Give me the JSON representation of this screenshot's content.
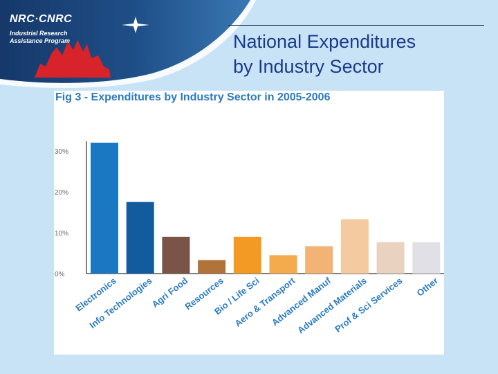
{
  "header": {
    "org_name": "NRC·CNRC",
    "program_line1": "Industrial Research",
    "program_line2": "Assistance Program"
  },
  "slide": {
    "title_line1": "National Expenditures",
    "title_line2": "by Industry Sector"
  },
  "chart_data": {
    "type": "bar",
    "title": "Fig 3 -  Expenditures by Industry Sector in 2005-2006",
    "xlabel": "",
    "ylabel": "",
    "ylim": [
      0,
      32
    ],
    "yticks": [
      0,
      10,
      20,
      30
    ],
    "ytick_labels": [
      "0%",
      "10%",
      "20%",
      "30%"
    ],
    "categories": [
      "Electronics",
      "Info Technologies",
      "Agri Food",
      "Resources",
      "Bio / Life Sci",
      "Aero & Transport",
      "Advanced Manuf",
      "Advanced Materials",
      "Prof & Sci Services",
      "Other"
    ],
    "values": [
      32,
      17.5,
      9,
      3.3,
      9,
      4.5,
      6.7,
      13.3,
      7.7,
      7.7
    ],
    "colors": [
      "#1a78c2",
      "#125c9e",
      "#7a5447",
      "#b0733a",
      "#f39a24",
      "#f4ab4e",
      "#f2b374",
      "#f4caa0",
      "#e9d3c0",
      "#e0e0e6"
    ],
    "grid": false
  }
}
